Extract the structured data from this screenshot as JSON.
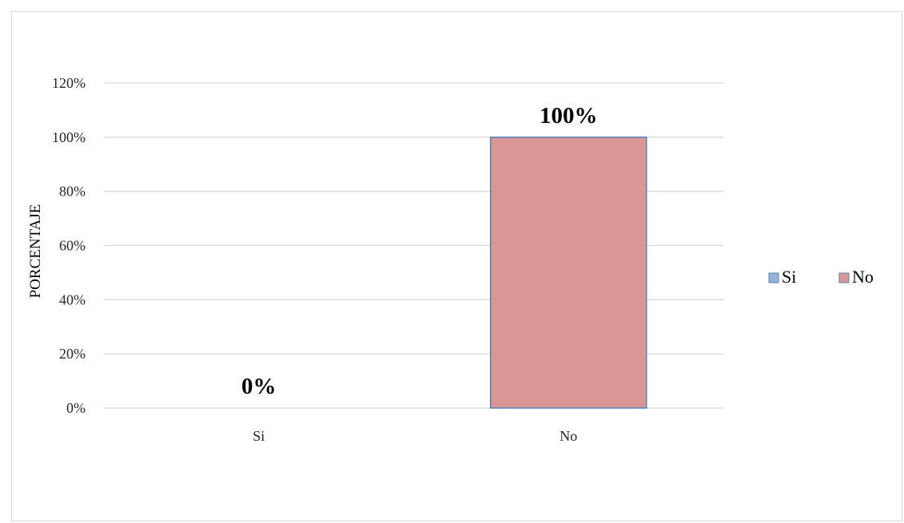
{
  "chart_data": {
    "type": "bar",
    "categories": [
      "Si",
      "No"
    ],
    "values": [
      0,
      100
    ],
    "data_labels": [
      "0%",
      "100%"
    ],
    "ylabel": "PORCENTAJE",
    "xlabel": "",
    "ylim": [
      0,
      120
    ],
    "y_ticks": [
      0,
      20,
      40,
      60,
      80,
      100,
      120
    ],
    "y_tick_labels": [
      "0%",
      "20%",
      "40%",
      "60%",
      "80%",
      "100%",
      "120%"
    ],
    "grid": true,
    "legend_position": "right",
    "legend": [
      {
        "name": "Si",
        "color": "#95b3d7"
      },
      {
        "name": "No",
        "color": "#d99694"
      }
    ],
    "bar_colors": [
      "#95b3d7",
      "#d99694"
    ],
    "bar_border_color": "#4f81bd",
    "gridline_color": "#d9d9d9"
  }
}
